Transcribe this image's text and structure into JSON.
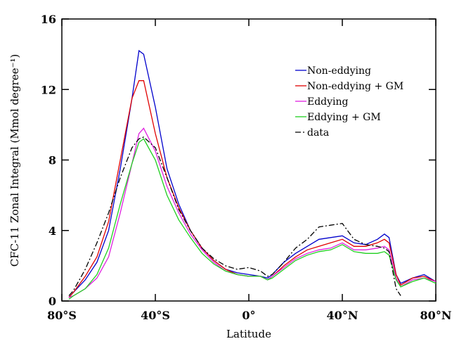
{
  "chart_data": {
    "type": "line",
    "xlabel": "Latitude",
    "ylabel": "CFC-11 Zonal Integral (Mmol degree⁻¹)",
    "x": [
      -77,
      -75,
      -70,
      -65,
      -60,
      -55,
      -50,
      -47,
      -45,
      -40,
      -35,
      -30,
      -25,
      -20,
      -15,
      -10,
      -5,
      0,
      5,
      8,
      10,
      15,
      20,
      25,
      30,
      35,
      40,
      45,
      50,
      55,
      58,
      60,
      63,
      65,
      70,
      75,
      80
    ],
    "series": [
      {
        "name": "Non-eddying",
        "color": "#0000cc",
        "linestyle": "solid",
        "values": [
          0.2,
          0.5,
          1.2,
          2.2,
          4,
          7.5,
          11.5,
          14.2,
          14,
          11,
          7.5,
          5.5,
          4,
          3,
          2.3,
          1.8,
          1.6,
          1.5,
          1.4,
          1.3,
          1.5,
          2.2,
          2.7,
          3.1,
          3.5,
          3.6,
          3.7,
          3.3,
          3.2,
          3.5,
          3.8,
          3.6,
          1.5,
          1.0,
          1.3,
          1.5,
          1.1
        ]
      },
      {
        "name": "Non-eddying + GM",
        "color": "#e00000",
        "linestyle": "solid",
        "values": [
          0.2,
          0.5,
          1.4,
          2.5,
          4.5,
          8,
          11.5,
          12.5,
          12.5,
          9.5,
          7,
          5.3,
          4,
          3,
          2.3,
          1.8,
          1.5,
          1.4,
          1.4,
          1.2,
          1.4,
          2,
          2.5,
          2.9,
          3.1,
          3.3,
          3.5,
          3.1,
          3.1,
          3.3,
          3.5,
          3.3,
          1.5,
          0.9,
          1.3,
          1.4,
          1.1
        ]
      },
      {
        "name": "Eddying",
        "color": "#e020e0",
        "linestyle": "solid",
        "values": [
          0.2,
          0.3,
          0.7,
          1.3,
          2.5,
          5,
          7.8,
          9.5,
          9.8,
          8.5,
          6.5,
          5,
          3.8,
          2.9,
          2.2,
          1.7,
          1.5,
          1.4,
          1.4,
          1.2,
          1.4,
          1.9,
          2.4,
          2.7,
          2.9,
          3.0,
          3.3,
          2.9,
          2.9,
          3.0,
          3.1,
          2.9,
          1.3,
          0.8,
          1.2,
          1.3,
          1.1
        ]
      },
      {
        "name": "Eddying + GM",
        "color": "#20d020",
        "linestyle": "solid",
        "values": [
          0.1,
          0.3,
          0.7,
          1.5,
          3,
          5.5,
          7.8,
          9,
          9.2,
          8,
          6,
          4.6,
          3.6,
          2.7,
          2.1,
          1.7,
          1.5,
          1.4,
          1.4,
          1.2,
          1.3,
          1.8,
          2.3,
          2.6,
          2.8,
          2.9,
          3.2,
          2.8,
          2.7,
          2.7,
          2.8,
          2.6,
          1.2,
          0.8,
          1.1,
          1.3,
          1.0
        ]
      },
      {
        "name": "data",
        "color": "#000000",
        "linestyle": "dashdot",
        "values": [
          0.3,
          0.6,
          1.8,
          3.3,
          5,
          7,
          8.7,
          9.2,
          9.3,
          8.7,
          7,
          5.2,
          4,
          3,
          2.4,
          2,
          1.8,
          1.9,
          1.7,
          1.4,
          1.5,
          2.2,
          3,
          3.5,
          4.2,
          4.3,
          4.4,
          3.5,
          3.2,
          3.1,
          3,
          2.8,
          0.7,
          0.3,
          null,
          null,
          null
        ]
      }
    ],
    "xlim": [
      -80,
      80
    ],
    "xticks": [
      {
        "value": -80,
        "label": "80°S"
      },
      {
        "value": -40,
        "label": "40°S"
      },
      {
        "value": 0,
        "label": "0°"
      },
      {
        "value": 40,
        "label": "40°N"
      },
      {
        "value": 80,
        "label": "80°N"
      }
    ],
    "ylim": [
      0,
      16
    ],
    "yticks": [
      0,
      4,
      8,
      12,
      16
    ],
    "grid": false,
    "legend": "upper-right"
  }
}
